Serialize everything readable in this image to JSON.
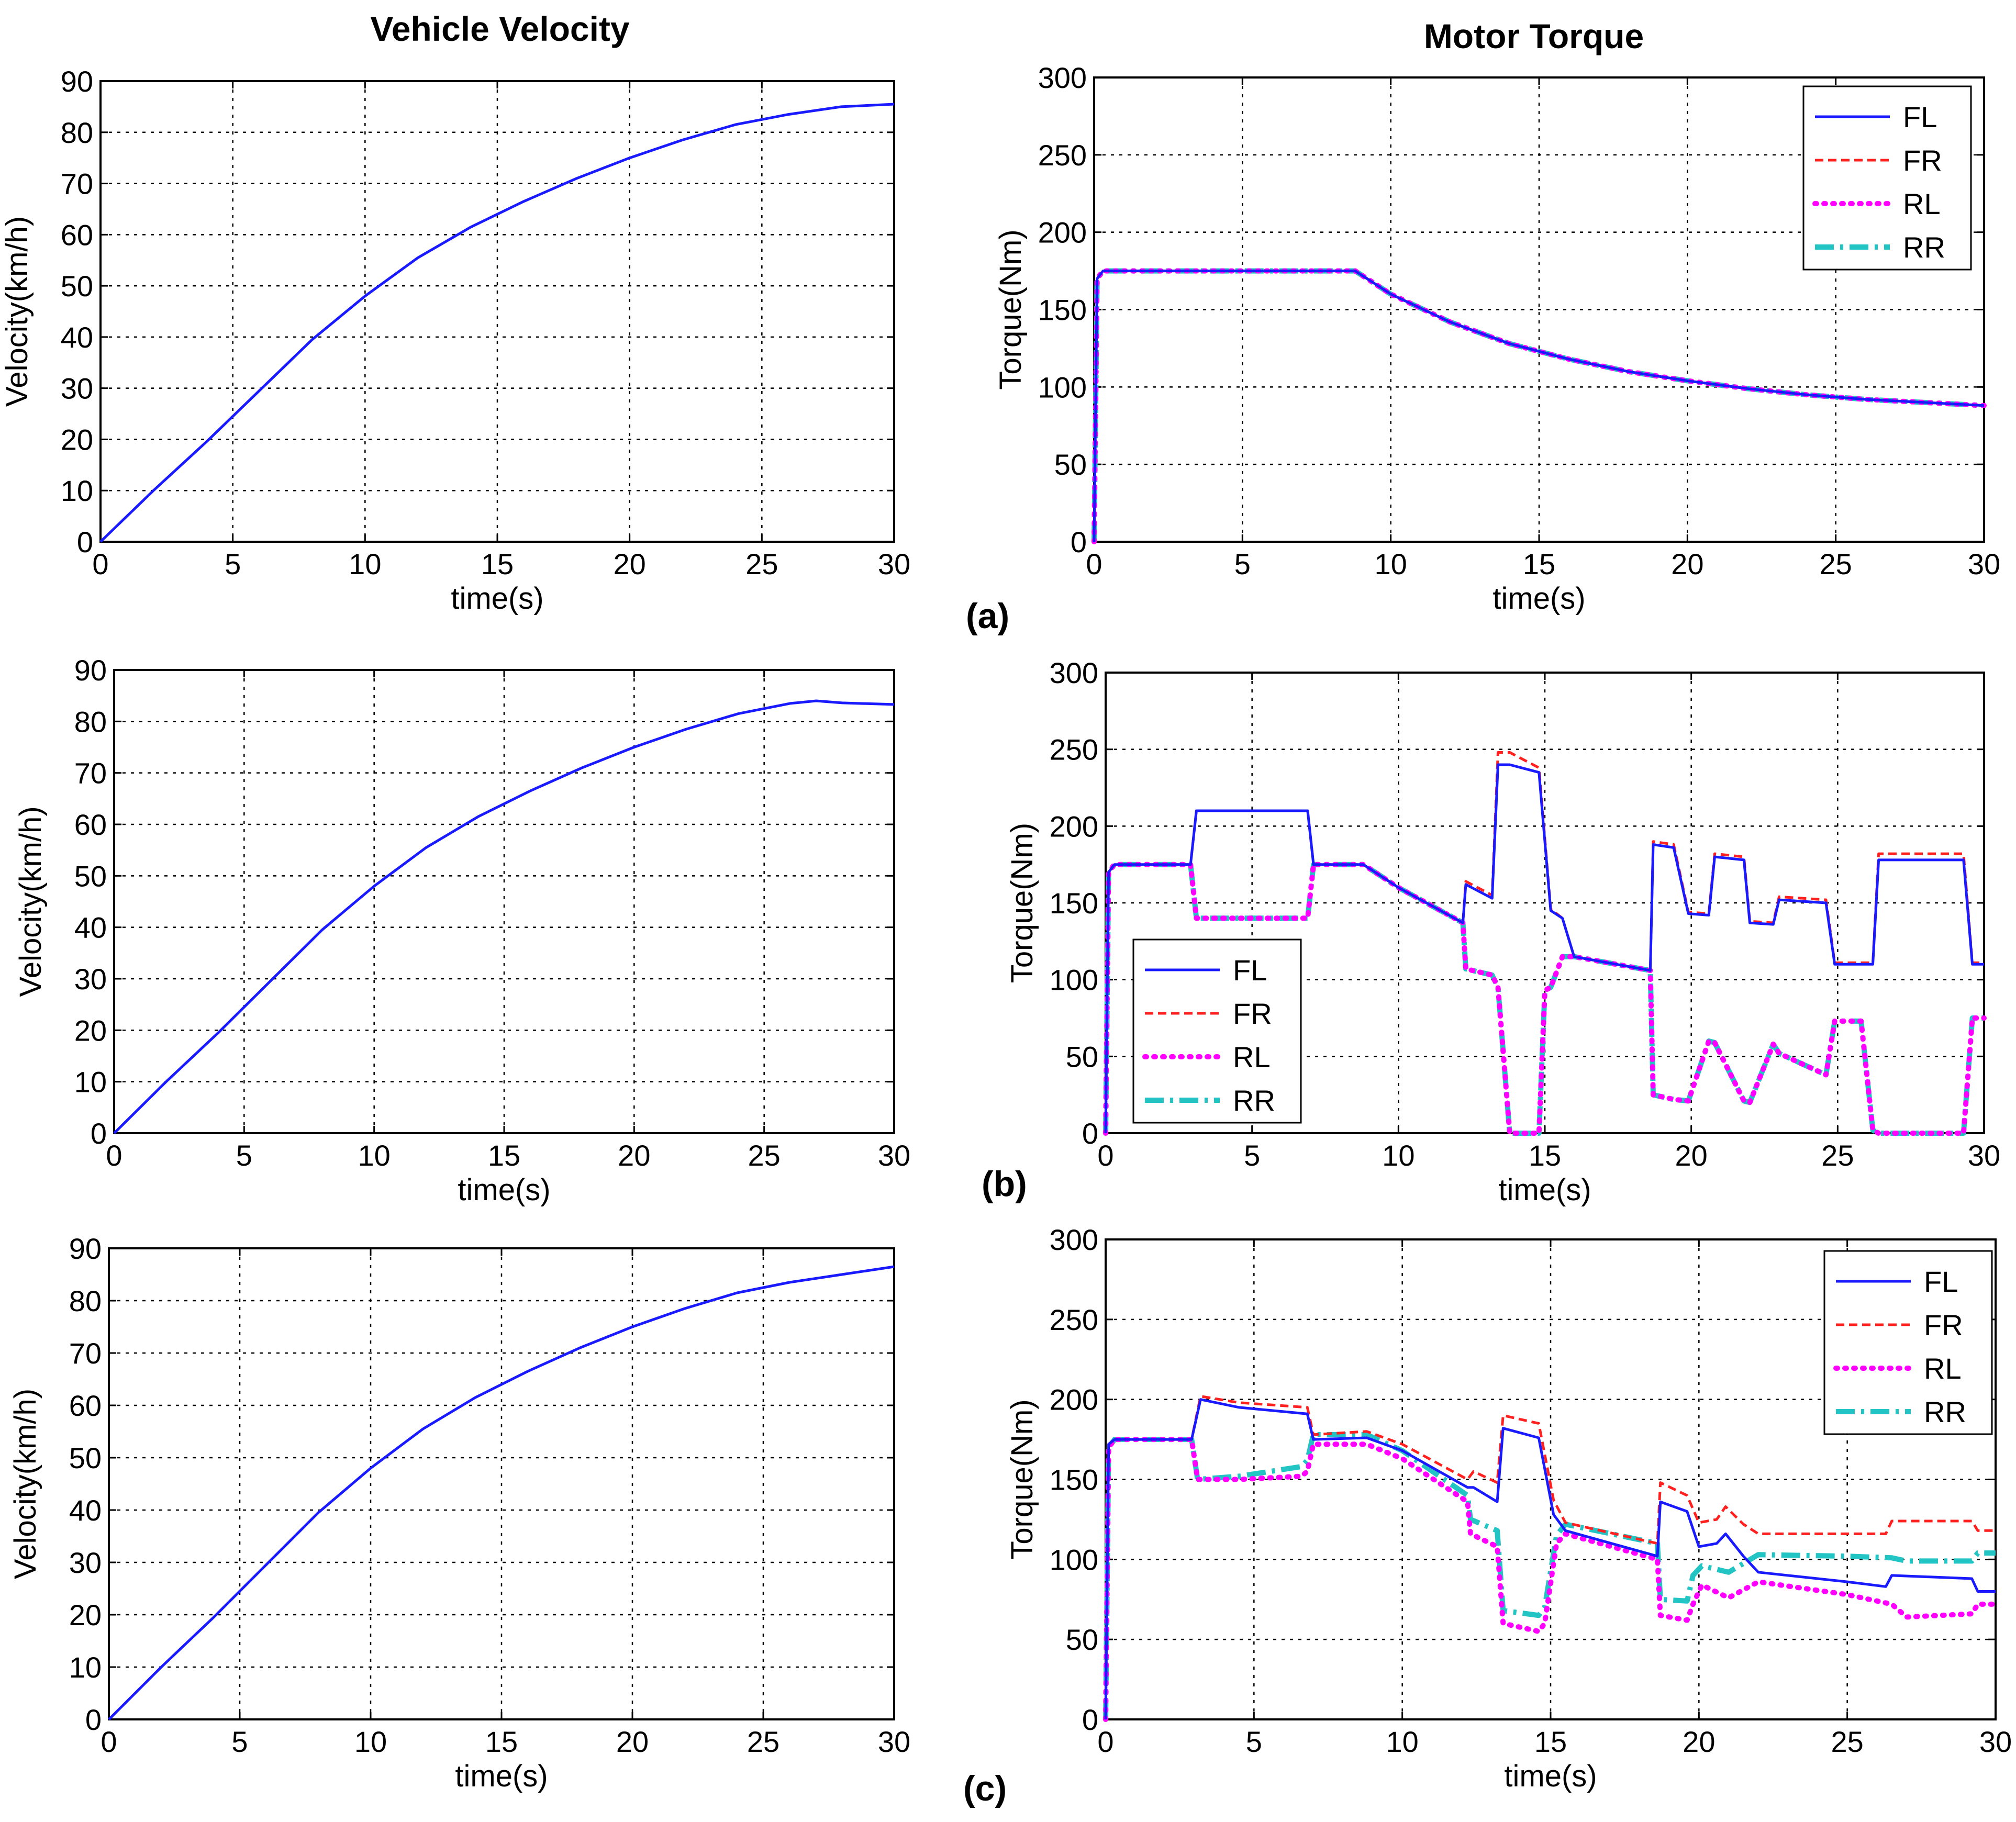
{
  "figure": {
    "col_titles": [
      "Vehicle Velocity",
      "Motor Torque"
    ],
    "panel_labels": [
      "(a)",
      "(b)",
      "(c)"
    ]
  },
  "colors": {
    "FL": "#1a1aff",
    "FR": "#ff2020",
    "RL": "#ff00ff",
    "RR": "#22c4c4"
  },
  "chart_data": [
    {
      "id": "a-velocity",
      "type": "line",
      "title": "",
      "xlabel": "time(s)",
      "ylabel": "Velocity(km/h)",
      "xlim": [
        0,
        30
      ],
      "ylim": [
        0,
        90
      ],
      "xticks": [
        "0",
        "5",
        "10",
        "15",
        "20",
        "25",
        "30"
      ],
      "yticks": [
        "0",
        "10",
        "20",
        "30",
        "40",
        "50",
        "60",
        "70",
        "80",
        "90"
      ],
      "grid": true,
      "legend": null,
      "series": [
        {
          "name": "Velocity",
          "key": "V",
          "x": [
            0,
            2,
            4,
            6,
            8,
            10,
            12,
            14,
            16,
            18,
            20,
            22,
            24,
            26,
            28,
            30
          ],
          "y": [
            0,
            10,
            19.5,
            29.5,
            39.5,
            48,
            55.5,
            61.5,
            66.5,
            71,
            75,
            78.5,
            81.5,
            83.5,
            85,
            85.5
          ]
        }
      ]
    },
    {
      "id": "a-torque",
      "type": "line",
      "title": "",
      "xlabel": "time(s)",
      "ylabel": "Torque(Nm)",
      "xlim": [
        0,
        30
      ],
      "ylim": [
        0,
        300
      ],
      "xticks": [
        "0",
        "5",
        "10",
        "15",
        "20",
        "25",
        "30"
      ],
      "yticks": [
        "0",
        "50",
        "100",
        "150",
        "200",
        "250",
        "300"
      ],
      "grid": true,
      "legend": "top-right",
      "series": [
        {
          "name": "FL",
          "key": "FL",
          "x": [
            0,
            0.1,
            0.3,
            8.8,
            10,
            12,
            14,
            16,
            18,
            20,
            22,
            24,
            26,
            28,
            30
          ],
          "y": [
            0,
            170,
            175,
            175,
            160,
            142,
            128,
            118,
            110,
            104,
            99,
            95,
            92,
            90,
            88
          ]
        },
        {
          "name": "FR",
          "key": "FR",
          "x": [
            0,
            0.1,
            0.3,
            8.8,
            10,
            12,
            14,
            16,
            18,
            20,
            22,
            24,
            26,
            28,
            30
          ],
          "y": [
            0,
            170,
            175,
            175,
            160,
            142,
            128,
            118,
            110,
            104,
            99,
            95,
            92,
            90,
            88
          ]
        },
        {
          "name": "RL",
          "key": "RL",
          "x": [
            0,
            0.1,
            0.3,
            8.8,
            10,
            12,
            14,
            16,
            18,
            20,
            22,
            24,
            26,
            28,
            30
          ],
          "y": [
            0,
            170,
            175,
            175,
            160,
            142,
            128,
            118,
            110,
            104,
            99,
            95,
            92,
            90,
            88
          ]
        },
        {
          "name": "RR",
          "key": "RR",
          "x": [
            0,
            0.1,
            0.3,
            8.8,
            10,
            12,
            14,
            16,
            18,
            20,
            22,
            24,
            26,
            28,
            30
          ],
          "y": [
            0,
            170,
            175,
            175,
            160,
            142,
            128,
            118,
            110,
            104,
            99,
            95,
            92,
            90,
            88
          ]
        }
      ]
    },
    {
      "id": "b-velocity",
      "type": "line",
      "title": "",
      "xlabel": "time(s)",
      "ylabel": "Velocity(km/h)",
      "xlim": [
        0,
        30
      ],
      "ylim": [
        0,
        90
      ],
      "xticks": [
        "0",
        "5",
        "10",
        "15",
        "20",
        "25",
        "30"
      ],
      "yticks": [
        "0",
        "10",
        "20",
        "30",
        "40",
        "50",
        "60",
        "70",
        "80",
        "90"
      ],
      "grid": true,
      "legend": null,
      "series": [
        {
          "name": "Velocity",
          "key": "V",
          "x": [
            0,
            2,
            4,
            6,
            8,
            10,
            12,
            14,
            16,
            18,
            20,
            22,
            24,
            26,
            27,
            28,
            30
          ],
          "y": [
            0,
            10,
            19.5,
            29.5,
            39.5,
            48,
            55.5,
            61.5,
            66.5,
            71,
            75,
            78.5,
            81.5,
            83.5,
            84,
            83.6,
            83.3
          ]
        }
      ]
    },
    {
      "id": "b-torque",
      "type": "line",
      "title": "",
      "xlabel": "time(s)",
      "ylabel": "Torque(Nm)",
      "xlim": [
        0,
        30
      ],
      "ylim": [
        0,
        300
      ],
      "xticks": [
        "0",
        "5",
        "10",
        "15",
        "20",
        "25",
        "30"
      ],
      "yticks": [
        "0",
        "50",
        "100",
        "150",
        "200",
        "250",
        "300"
      ],
      "grid": true,
      "legend": "center-left",
      "series": [
        {
          "name": "FL",
          "key": "FL",
          "x": [
            0,
            0.1,
            0.3,
            2.9,
            3.1,
            6.9,
            7.1,
            8.8,
            10,
            12.2,
            12.3,
            13.2,
            13.4,
            13.8,
            14.8,
            15.2,
            15.6,
            16,
            18.6,
            18.7,
            19.4,
            19.9,
            20.6,
            20.8,
            21.8,
            22,
            22.8,
            23,
            24.6,
            24.9,
            26.2,
            26.4,
            29.3,
            29.6,
            30
          ],
          "y": [
            0,
            170,
            175,
            175,
            210,
            210,
            175,
            175,
            160,
            137,
            162,
            153,
            240,
            240,
            235,
            145,
            140,
            115,
            106,
            188,
            186,
            143,
            142,
            180,
            178,
            137,
            136,
            152,
            150,
            110,
            110,
            178,
            178,
            110,
            110
          ]
        },
        {
          "name": "FR",
          "key": "FR",
          "x": [
            0,
            0.1,
            0.3,
            2.9,
            3.1,
            6.9,
            7.1,
            8.8,
            10,
            12.2,
            12.3,
            13.2,
            13.4,
            13.8,
            14.8,
            15.2,
            15.6,
            16,
            18.6,
            18.7,
            19.4,
            19.9,
            20.6,
            20.8,
            21.8,
            22,
            22.8,
            23,
            24.6,
            24.9,
            26.2,
            26.4,
            29.3,
            29.6,
            30
          ],
          "y": [
            0,
            170,
            175,
            175,
            210,
            210,
            175,
            175,
            160,
            137,
            164,
            155,
            248,
            248,
            238,
            146,
            140,
            115,
            106,
            190,
            188,
            144,
            143,
            182,
            180,
            138,
            137,
            154,
            152,
            111,
            111,
            182,
            182,
            111,
            111
          ]
        },
        {
          "name": "RL",
          "key": "RL",
          "x": [
            0,
            0.1,
            0.3,
            2.9,
            3.1,
            6.9,
            7.1,
            8.8,
            10,
            12.2,
            12.3,
            13.2,
            13.4,
            13.8,
            14.8,
            15,
            15.2,
            15.6,
            16,
            18.6,
            18.7,
            19.4,
            19.9,
            20.6,
            20.8,
            21.8,
            22,
            22.8,
            23,
            24.6,
            24.9,
            25.8,
            26.2,
            26.4,
            29.3,
            29.6,
            30
          ],
          "y": [
            0,
            170,
            175,
            175,
            140,
            140,
            175,
            175,
            160,
            137,
            107,
            103,
            95,
            0,
            0,
            93,
            95,
            115,
            115,
            106,
            25,
            22,
            21,
            60,
            59,
            21,
            20,
            58,
            52,
            38,
            73,
            73,
            2,
            0,
            0,
            75,
            75
          ]
        },
        {
          "name": "RR",
          "key": "RR",
          "x": [
            0,
            0.1,
            0.3,
            2.9,
            3.1,
            6.9,
            7.1,
            8.8,
            10,
            12.2,
            12.3,
            13.2,
            13.4,
            13.8,
            14.8,
            15,
            15.2,
            15.6,
            16,
            18.6,
            18.7,
            19.4,
            19.9,
            20.6,
            20.8,
            21.8,
            22,
            22.8,
            23,
            24.6,
            24.9,
            25.8,
            26.2,
            26.4,
            29.3,
            29.6,
            30
          ],
          "y": [
            0,
            170,
            175,
            175,
            140,
            140,
            175,
            175,
            160,
            137,
            107,
            103,
            95,
            0,
            0,
            93,
            95,
            115,
            115,
            106,
            25,
            22,
            21,
            60,
            59,
            21,
            20,
            58,
            52,
            38,
            73,
            73,
            2,
            0,
            0,
            75,
            75
          ]
        }
      ]
    },
    {
      "id": "c-velocity",
      "type": "line",
      "title": "",
      "xlabel": "time(s)",
      "ylabel": "Velocity(km/h)",
      "xlim": [
        0,
        30
      ],
      "ylim": [
        0,
        90
      ],
      "xticks": [
        "0",
        "5",
        "10",
        "15",
        "20",
        "25",
        "30"
      ],
      "yticks": [
        "0",
        "10",
        "20",
        "30",
        "40",
        "50",
        "60",
        "70",
        "80",
        "90"
      ],
      "grid": true,
      "legend": null,
      "series": [
        {
          "name": "Velocity",
          "key": "V",
          "x": [
            0,
            2,
            4,
            6,
            8,
            10,
            12,
            14,
            16,
            18,
            20,
            22,
            24,
            26,
            28,
            30
          ],
          "y": [
            0,
            10,
            19.5,
            29.5,
            39.5,
            48,
            55.5,
            61.5,
            66.5,
            71,
            75,
            78.5,
            81.5,
            83.5,
            85,
            86.5
          ]
        }
      ]
    },
    {
      "id": "c-torque",
      "type": "line",
      "title": "",
      "xlabel": "time(s)",
      "ylabel": "Torque(Nm)",
      "xlim": [
        0,
        30
      ],
      "ylim": [
        0,
        300
      ],
      "xticks": [
        "0",
        "5",
        "10",
        "15",
        "20",
        "25",
        "30"
      ],
      "yticks": [
        "0",
        "50",
        "100",
        "150",
        "200",
        "250",
        "300"
      ],
      "grid": true,
      "legend": "top-right",
      "series": [
        {
          "name": "FL",
          "key": "FL",
          "x": [
            0,
            0.1,
            0.3,
            2.9,
            3.2,
            4.5,
            6.8,
            7.0,
            8.8,
            10,
            12.2,
            12.4,
            13.2,
            13.4,
            14.6,
            15.1,
            15.5,
            18.6,
            18.7,
            19.6,
            20,
            20.6,
            20.9,
            21.5,
            22,
            25,
            26.3,
            26.5,
            29.2,
            29.4,
            30
          ],
          "y": [
            0,
            172,
            175,
            175,
            200,
            195,
            191,
            175,
            176,
            168,
            145,
            145,
            136,
            182,
            176,
            128,
            118,
            102,
            136,
            130,
            108,
            110,
            116,
            102,
            92,
            86,
            83,
            90,
            88,
            80,
            80
          ]
        },
        {
          "name": "FR",
          "key": "FR",
          "x": [
            0,
            0.1,
            0.3,
            2.9,
            3.2,
            4.5,
            6.8,
            7.0,
            8.8,
            10,
            12.2,
            12.4,
            13.2,
            13.4,
            14.6,
            15.1,
            15.5,
            18.6,
            18.7,
            19.6,
            20,
            20.6,
            20.9,
            21.5,
            22,
            25,
            26.3,
            26.5,
            29.2,
            29.4,
            30
          ],
          "y": [
            0,
            172,
            175,
            175,
            202,
            198,
            195,
            178,
            180,
            172,
            150,
            155,
            148,
            190,
            185,
            137,
            123,
            110,
            148,
            140,
            123,
            125,
            133,
            122,
            116,
            116,
            116,
            124,
            124,
            118,
            118
          ]
        },
        {
          "name": "RL",
          "key": "RL",
          "x": [
            0,
            0.1,
            0.3,
            2.9,
            3.1,
            4.5,
            6.6,
            6.8,
            7.0,
            8.8,
            10,
            12.2,
            12.3,
            13.2,
            13.4,
            14.6,
            14.8,
            15.2,
            15.5,
            18.6,
            18.7,
            19.6,
            19.8,
            20.1,
            21,
            22,
            25,
            26.5,
            27,
            29.2,
            29.4,
            30
          ],
          "y": [
            0,
            170,
            175,
            175,
            150,
            150,
            152,
            155,
            172,
            172,
            163,
            136,
            116,
            108,
            60,
            55,
            60,
            110,
            116,
            100,
            65,
            62,
            72,
            84,
            76,
            86,
            78,
            72,
            64,
            66,
            72,
            72
          ]
        },
        {
          "name": "RR",
          "key": "RR",
          "x": [
            0,
            0.1,
            0.3,
            2.9,
            3.1,
            4.5,
            6.6,
            6.8,
            7.0,
            8.8,
            10,
            12.2,
            12.3,
            13.2,
            13.4,
            14.6,
            14.8,
            15.2,
            15.5,
            18.6,
            18.7,
            19.6,
            19.8,
            20.1,
            21,
            22,
            25,
            26.5,
            27,
            29.2,
            29.4,
            30
          ],
          "y": [
            0,
            170,
            175,
            175,
            150,
            152,
            158,
            162,
            178,
            178,
            168,
            140,
            125,
            118,
            68,
            65,
            70,
            115,
            122,
            110,
            75,
            74,
            90,
            96,
            92,
            103,
            102,
            101,
            99,
            99,
            104,
            104
          ]
        }
      ]
    }
  ]
}
